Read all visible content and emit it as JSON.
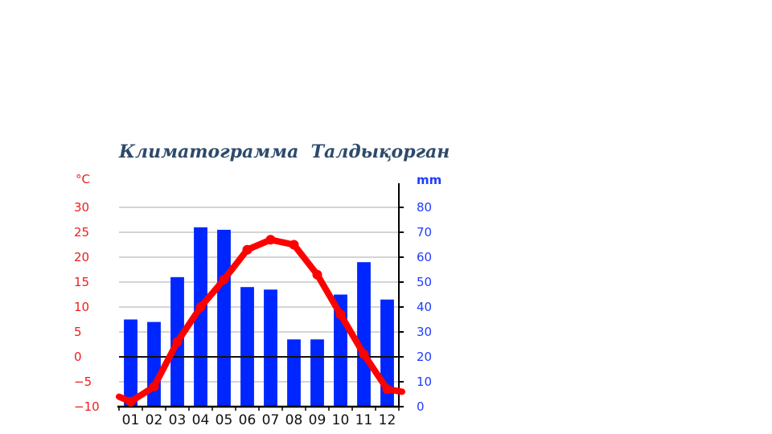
{
  "chart_data": {
    "type": "bar+line",
    "title": "Климатограмма  Талдықорган",
    "categories": [
      "01",
      "02",
      "03",
      "04",
      "05",
      "06",
      "07",
      "08",
      "09",
      "10",
      "11",
      "12"
    ],
    "left_axis": {
      "label": "°C",
      "ylim": [
        -10,
        30
      ],
      "ticks": [
        -10,
        -5,
        0,
        5,
        10,
        15,
        20,
        25,
        30
      ],
      "color": "#f21b1b"
    },
    "right_axis": {
      "label": "mm",
      "ylim": [
        0,
        80
      ],
      "ticks": [
        0,
        10,
        20,
        30,
        40,
        50,
        60,
        70,
        80
      ],
      "color": "#1f3cff"
    },
    "series": [
      {
        "type": "bar",
        "axis": "right",
        "color": "#0026ff",
        "values": [
          35,
          34,
          52,
          72,
          71,
          48,
          47,
          27,
          27,
          45,
          58,
          43
        ]
      },
      {
        "type": "line",
        "axis": "left",
        "color": "#ff0000",
        "values": [
          -9,
          -6,
          3,
          10,
          15.5,
          21.5,
          23.5,
          22.5,
          16.5,
          8.5,
          0.5,
          -6.5
        ]
      }
    ],
    "grid": true
  }
}
